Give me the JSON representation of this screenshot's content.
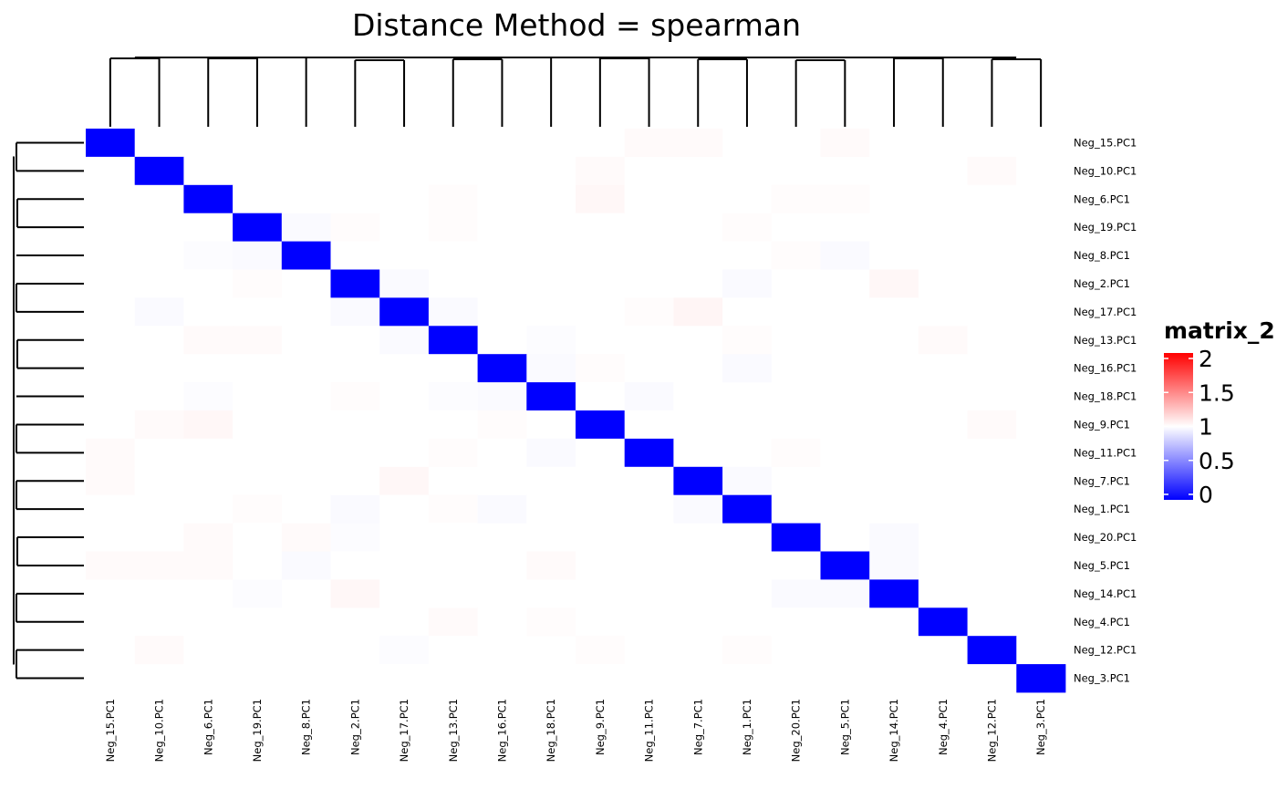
{
  "chart_data": {
    "type": "heatmap",
    "title": "Distance Method = spearman",
    "row_labels": [
      "Neg_15.PC1",
      "Neg_10.PC1",
      "Neg_6.PC1",
      "Neg_19.PC1",
      "Neg_8.PC1",
      "Neg_2.PC1",
      "Neg_17.PC1",
      "Neg_13.PC1",
      "Neg_16.PC1",
      "Neg_18.PC1",
      "Neg_9.PC1",
      "Neg_11.PC1",
      "Neg_7.PC1",
      "Neg_1.PC1",
      "Neg_20.PC1",
      "Neg_5.PC1",
      "Neg_14.PC1",
      "Neg_4.PC1",
      "Neg_12.PC1",
      "Neg_3.PC1"
    ],
    "col_labels": [
      "Neg_15.PC1",
      "Neg_10.PC1",
      "Neg_6.PC1",
      "Neg_19.PC1",
      "Neg_8.PC1",
      "Neg_2.PC1",
      "Neg_17.PC1",
      "Neg_13.PC1",
      "Neg_16.PC1",
      "Neg_18.PC1",
      "Neg_9.PC1",
      "Neg_11.PC1",
      "Neg_7.PC1",
      "Neg_1.PC1",
      "Neg_20.PC1",
      "Neg_5.PC1",
      "Neg_14.PC1",
      "Neg_4.PC1",
      "Neg_12.PC1",
      "Neg_3.PC1"
    ],
    "diagonal_value": 0,
    "off_diagonal_value": 1,
    "value_deviations": [
      {
        "row": 0,
        "col": 11,
        "value": 1.02
      },
      {
        "row": 0,
        "col": 12,
        "value": 1.02
      },
      {
        "row": 0,
        "col": 15,
        "value": 1.02
      },
      {
        "row": 1,
        "col": 10,
        "value": 1.02
      },
      {
        "row": 1,
        "col": 18,
        "value": 1.02
      },
      {
        "row": 2,
        "col": 10,
        "value": 1.03
      },
      {
        "row": 2,
        "col": 7,
        "value": 1.01
      },
      {
        "row": 2,
        "col": 14,
        "value": 1.01
      },
      {
        "row": 2,
        "col": 15,
        "value": 1.01
      },
      {
        "row": 3,
        "col": 4,
        "value": 0.98
      },
      {
        "row": 3,
        "col": 5,
        "value": 1.01
      },
      {
        "row": 3,
        "col": 7,
        "value": 1.01
      },
      {
        "row": 3,
        "col": 13,
        "value": 1.01
      },
      {
        "row": 4,
        "col": 2,
        "value": 0.99
      },
      {
        "row": 4,
        "col": 3,
        "value": 0.98
      },
      {
        "row": 4,
        "col": 14,
        "value": 1.01
      },
      {
        "row": 4,
        "col": 15,
        "value": 0.98
      },
      {
        "row": 5,
        "col": 6,
        "value": 0.98
      },
      {
        "row": 5,
        "col": 13,
        "value": 0.98
      },
      {
        "row": 5,
        "col": 16,
        "value": 1.03
      },
      {
        "row": 5,
        "col": 3,
        "value": 1.01
      },
      {
        "row": 6,
        "col": 1,
        "value": 0.98
      },
      {
        "row": 6,
        "col": 5,
        "value": 0.98
      },
      {
        "row": 6,
        "col": 7,
        "value": 0.98
      },
      {
        "row": 6,
        "col": 12,
        "value": 1.04
      },
      {
        "row": 6,
        "col": 11,
        "value": 1.01
      },
      {
        "row": 7,
        "col": 2,
        "value": 1.02
      },
      {
        "row": 7,
        "col": 3,
        "value": 1.02
      },
      {
        "row": 7,
        "col": 6,
        "value": 0.98
      },
      {
        "row": 7,
        "col": 9,
        "value": 0.99
      },
      {
        "row": 7,
        "col": 13,
        "value": 1.01
      },
      {
        "row": 7,
        "col": 17,
        "value": 1.02
      },
      {
        "row": 8,
        "col": 9,
        "value": 0.98
      },
      {
        "row": 8,
        "col": 10,
        "value": 1.01
      },
      {
        "row": 8,
        "col": 13,
        "value": 0.98
      },
      {
        "row": 9,
        "col": 2,
        "value": 0.99
      },
      {
        "row": 9,
        "col": 5,
        "value": 1.01
      },
      {
        "row": 9,
        "col": 7,
        "value": 0.99
      },
      {
        "row": 9,
        "col": 8,
        "value": 0.98
      },
      {
        "row": 9,
        "col": 11,
        "value": 0.98
      },
      {
        "row": 10,
        "col": 1,
        "value": 1.02
      },
      {
        "row": 10,
        "col": 2,
        "value": 1.03
      },
      {
        "row": 10,
        "col": 8,
        "value": 1.01
      },
      {
        "row": 10,
        "col": 18,
        "value": 1.02
      },
      {
        "row": 11,
        "col": 0,
        "value": 1.02
      },
      {
        "row": 11,
        "col": 7,
        "value": 1.01
      },
      {
        "row": 11,
        "col": 9,
        "value": 0.98
      },
      {
        "row": 11,
        "col": 14,
        "value": 1.01
      },
      {
        "row": 12,
        "col": 0,
        "value": 1.02
      },
      {
        "row": 12,
        "col": 6,
        "value": 1.03
      },
      {
        "row": 12,
        "col": 13,
        "value": 0.98
      },
      {
        "row": 13,
        "col": 3,
        "value": 1.01
      },
      {
        "row": 13,
        "col": 5,
        "value": 0.98
      },
      {
        "row": 13,
        "col": 7,
        "value": 1.01
      },
      {
        "row": 13,
        "col": 8,
        "value": 0.98
      },
      {
        "row": 13,
        "col": 12,
        "value": 0.98
      },
      {
        "row": 14,
        "col": 2,
        "value": 1.02
      },
      {
        "row": 14,
        "col": 4,
        "value": 1.02
      },
      {
        "row": 14,
        "col": 5,
        "value": 0.99
      },
      {
        "row": 14,
        "col": 16,
        "value": 0.98
      },
      {
        "row": 15,
        "col": 0,
        "value": 1.02
      },
      {
        "row": 15,
        "col": 1,
        "value": 1.02
      },
      {
        "row": 15,
        "col": 2,
        "value": 1.02
      },
      {
        "row": 15,
        "col": 4,
        "value": 0.98
      },
      {
        "row": 15,
        "col": 9,
        "value": 1.02
      },
      {
        "row": 15,
        "col": 16,
        "value": 0.98
      },
      {
        "row": 16,
        "col": 3,
        "value": 0.99
      },
      {
        "row": 16,
        "col": 5,
        "value": 1.03
      },
      {
        "row": 16,
        "col": 14,
        "value": 0.98
      },
      {
        "row": 16,
        "col": 15,
        "value": 0.98
      },
      {
        "row": 17,
        "col": 7,
        "value": 1.02
      },
      {
        "row": 17,
        "col": 9,
        "value": 1.01
      },
      {
        "row": 18,
        "col": 1,
        "value": 1.02
      },
      {
        "row": 18,
        "col": 6,
        "value": 0.99
      },
      {
        "row": 18,
        "col": 10,
        "value": 1.01
      },
      {
        "row": 18,
        "col": 13,
        "value": 1.01
      }
    ],
    "color_scale": {
      "stops": [
        {
          "value": 0,
          "color": "#0000FF"
        },
        {
          "value": 1,
          "color": "#FFFFFF"
        },
        {
          "value": 2,
          "color": "#FF0000"
        }
      ]
    },
    "legend": {
      "title": "matrix_2",
      "ticks": [
        "0",
        "0.5",
        "1",
        "1.5",
        "2"
      ],
      "tick_values": [
        0,
        0.5,
        1,
        1.5,
        2
      ],
      "placement": "right"
    },
    "dendrogram": {
      "rows": "left",
      "columns": "top"
    }
  }
}
